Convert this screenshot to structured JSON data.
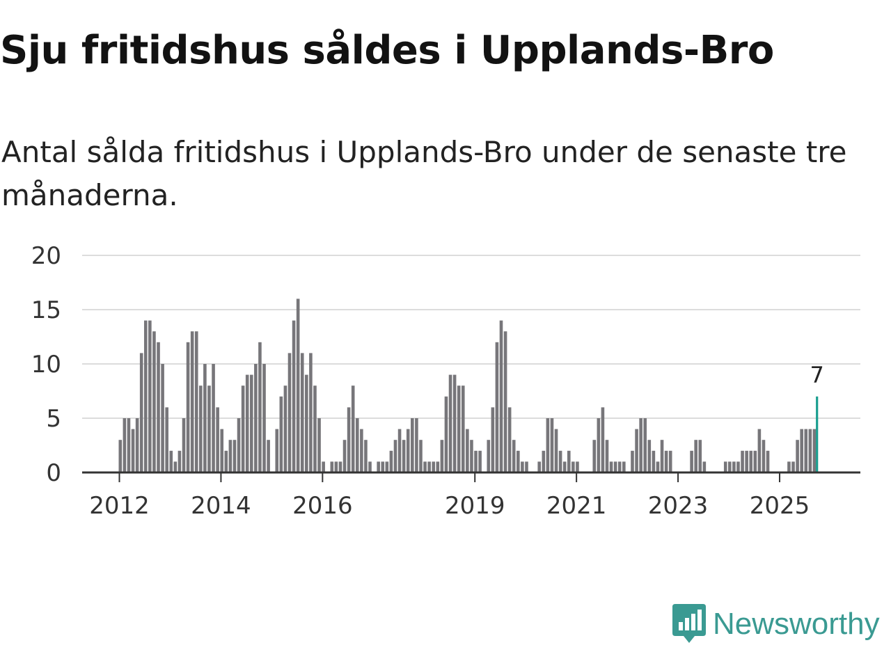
{
  "title": "Sju fritidshus såldes i Upplands-Bro",
  "subtitle": "Antal sålda fritidshus i Upplands-Bro under de senaste tre månaderna.",
  "brand": {
    "name": "Newsworthy",
    "icon": "newsworthy-logo-icon",
    "color": "#3a9a92"
  },
  "colors": {
    "bar": "#77767a",
    "highlight": "#1a9e8f",
    "grid": "#dcdcdc",
    "axis": "#333333"
  },
  "chart_data": {
    "type": "bar",
    "title": "Sju fritidshus såldes i Upplands-Bro",
    "xlabel": "",
    "ylabel": "",
    "ylim": [
      0,
      20
    ],
    "yticks": [
      "0",
      "5",
      "10",
      "15",
      "20"
    ],
    "xticks": [
      "2012",
      "2014",
      "2016",
      "2019",
      "2021",
      "2023",
      "2025"
    ],
    "x_start": "2012-01",
    "frequency": "monthly",
    "values": [
      3,
      5,
      5,
      4,
      5,
      11,
      14,
      14,
      13,
      12,
      10,
      6,
      2,
      1,
      2,
      5,
      12,
      13,
      13,
      8,
      10,
      8,
      10,
      6,
      4,
      2,
      3,
      3,
      5,
      8,
      9,
      9,
      10,
      12,
      10,
      3,
      0,
      4,
      7,
      8,
      11,
      14,
      16,
      11,
      9,
      11,
      8,
      5,
      1,
      0,
      1,
      1,
      1,
      3,
      6,
      8,
      5,
      4,
      3,
      1,
      0,
      1,
      1,
      1,
      2,
      3,
      4,
      3,
      4,
      5,
      5,
      3,
      1,
      1,
      1,
      1,
      3,
      7,
      9,
      9,
      8,
      8,
      4,
      3,
      2,
      2,
      0,
      3,
      6,
      12,
      14,
      13,
      6,
      3,
      2,
      1,
      1,
      0,
      0,
      1,
      2,
      5,
      5,
      4,
      2,
      1,
      2,
      1,
      1,
      0,
      0,
      0,
      3,
      5,
      6,
      3,
      1,
      1,
      1,
      1,
      0,
      2,
      4,
      5,
      5,
      3,
      2,
      1,
      3,
      2,
      2,
      0,
      0,
      0,
      0,
      2,
      3,
      3,
      1,
      0,
      0,
      0,
      0,
      1,
      1,
      1,
      1,
      2,
      2,
      2,
      2,
      4,
      3,
      2,
      0,
      0,
      0,
      0,
      1,
      1,
      3,
      4,
      4,
      4,
      4,
      7
    ],
    "highlight": {
      "index": 165,
      "label": "7"
    }
  }
}
